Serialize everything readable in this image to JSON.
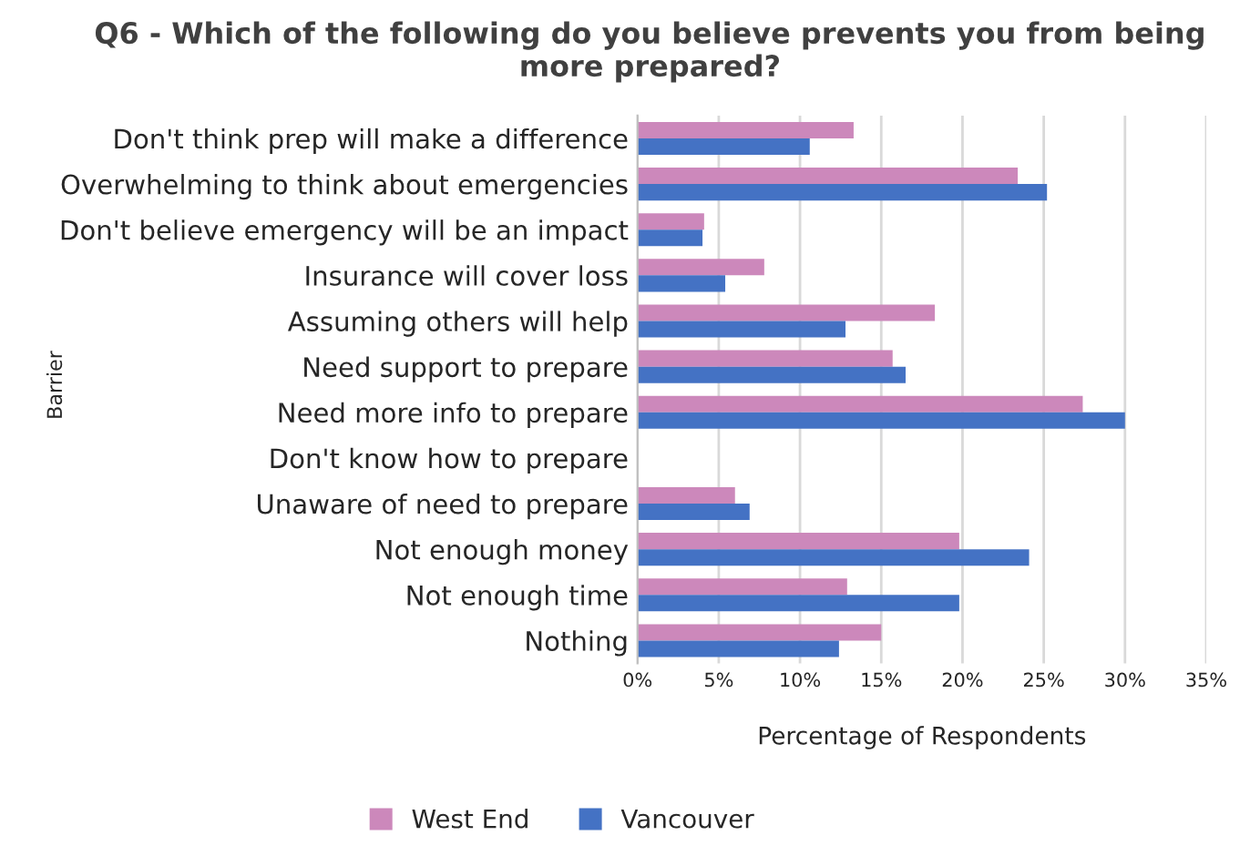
{
  "chart_data": {
    "type": "bar",
    "orientation": "horizontal",
    "title": "Q6 - Which of the following do you believe prevents you from being more prepared?",
    "xlabel": "Percentage of Respondents",
    "ylabel": "Barrier",
    "categories": [
      "Don't think prep will make a difference",
      "Overwhelming to think about emergencies",
      "Don't believe emergency will be an impact",
      "Insurance will cover loss",
      "Assuming others will help",
      "Need support to prepare",
      "Need more info to prepare",
      "Don't know how to prepare",
      "Unaware of need to prepare",
      "Not enough money",
      "Not enough time",
      "Nothing"
    ],
    "series": [
      {
        "name": "West End",
        "color": "#cc88bb",
        "values": [
          13.3,
          23.4,
          4.1,
          7.8,
          18.3,
          15.7,
          27.4,
          0,
          6.0,
          19.8,
          12.9,
          15.0
        ]
      },
      {
        "name": "Vancouver",
        "color": "#4472c4",
        "values": [
          10.6,
          25.2,
          4.0,
          5.4,
          12.8,
          16.5,
          30.0,
          0,
          6.9,
          24.1,
          19.8,
          12.4
        ]
      }
    ],
    "xlim": [
      0,
      35
    ],
    "xticks": [
      {
        "value": 0,
        "label": "0%"
      },
      {
        "value": 5,
        "label": "5%"
      },
      {
        "value": 10,
        "label": "10%"
      },
      {
        "value": 15,
        "label": "15%"
      },
      {
        "value": 20,
        "label": "20%"
      },
      {
        "value": 25,
        "label": "25%"
      },
      {
        "value": 30,
        "label": "30%"
      },
      {
        "value": 35,
        "label": "35%"
      }
    ],
    "grid": "x",
    "legend": "bottom"
  }
}
